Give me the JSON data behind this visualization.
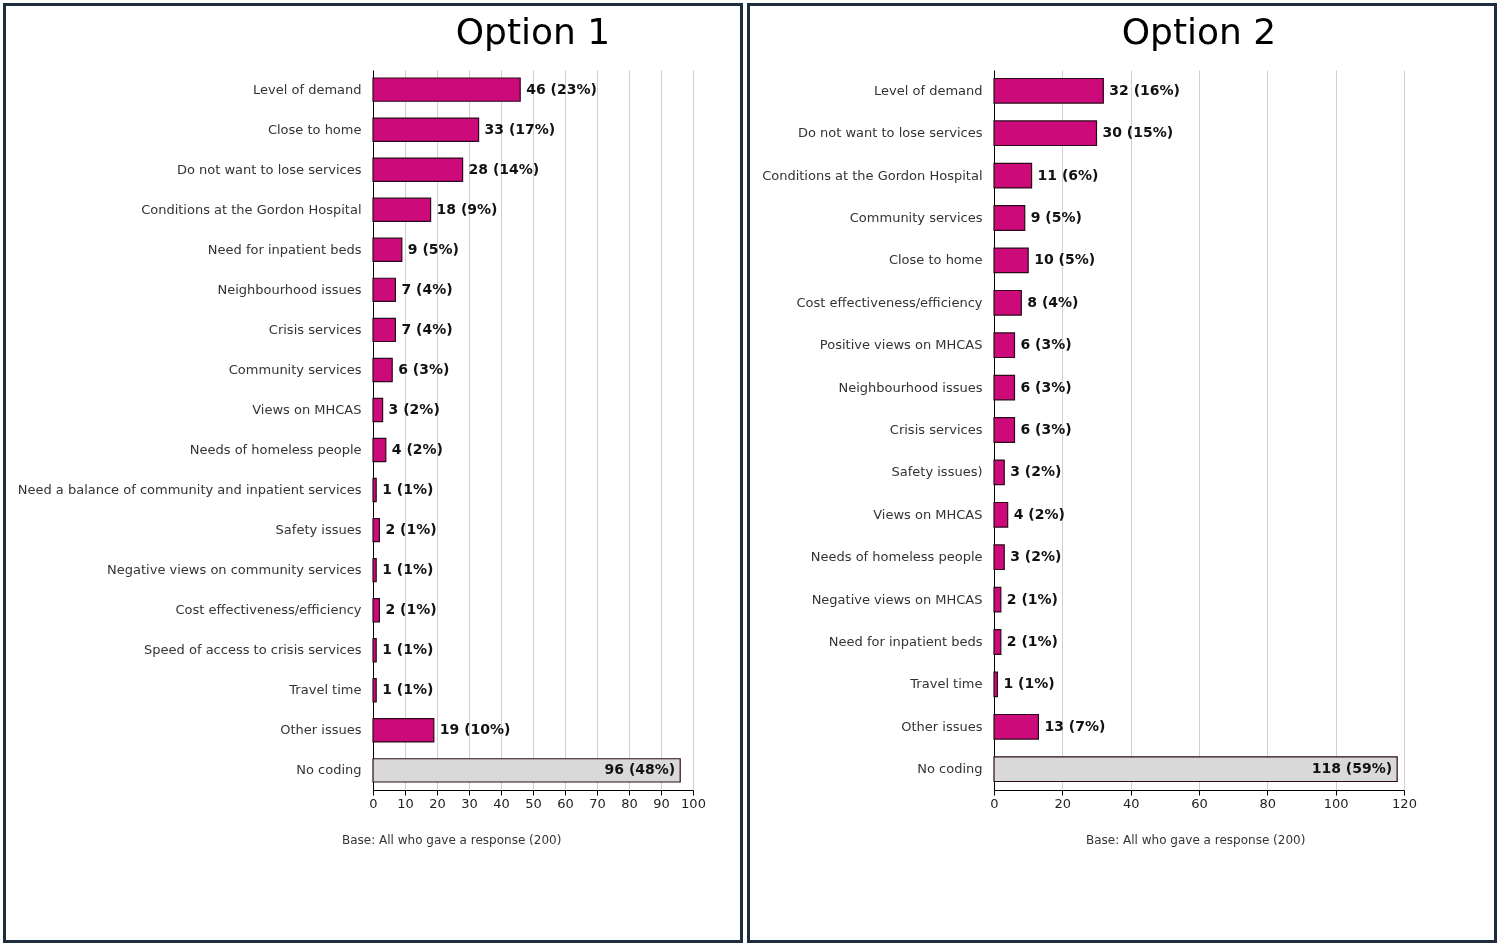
{
  "chart_data": [
    {
      "type": "bar",
      "title": "Option 1",
      "orientation": "horizontal",
      "categories": [
        "Level of demand",
        "Close to home",
        "Do not want to lose services",
        "Conditions at the Gordon Hospital",
        "Need for inpatient beds",
        "Neighbourhood issues",
        "Crisis services",
        "Community services",
        "Views on MHCAS",
        "Needs of homeless people",
        "Need a balance of community and inpatient services",
        "Safety issues",
        "Negative views on community services",
        "Cost effectiveness/efficiency",
        "Speed of access to crisis services",
        "Travel time",
        "Other issues",
        "No coding"
      ],
      "values": [
        46,
        33,
        28,
        18,
        9,
        7,
        7,
        6,
        3,
        4,
        1,
        2,
        1,
        2,
        1,
        1,
        19,
        96
      ],
      "value_labels": [
        "46 (23%)",
        "33 (17%)",
        "28 (14%)",
        "18 (9%)",
        "9 (5%)",
        "7 (4%)",
        "7 (4%)",
        "6 (3%)",
        "3 (2%)",
        "4 (2%)",
        "1 (1%)",
        "2 (1%)",
        "1 (1%)",
        "2 (1%)",
        "1 (1%)",
        "1 (1%)",
        "19 (10%)",
        "96 (48%)"
      ],
      "colors": [
        "#cc0a7a",
        "#cc0a7a",
        "#cc0a7a",
        "#cc0a7a",
        "#cc0a7a",
        "#cc0a7a",
        "#cc0a7a",
        "#cc0a7a",
        "#cc0a7a",
        "#cc0a7a",
        "#cc0a7a",
        "#cc0a7a",
        "#cc0a7a",
        "#cc0a7a",
        "#cc0a7a",
        "#cc0a7a",
        "#cc0a7a",
        "#d9d9d9"
      ],
      "xlim": [
        0,
        100
      ],
      "xticks": [
        0,
        10,
        20,
        30,
        40,
        50,
        60,
        70,
        80,
        90,
        100
      ],
      "grid": "x",
      "annotations": [
        "Base: All who gave a response (200)"
      ]
    },
    {
      "type": "bar",
      "title": "Option 2",
      "orientation": "horizontal",
      "categories": [
        "Level of demand",
        "Do not want to lose services",
        "Conditions at the Gordon Hospital",
        "Community services",
        "Close to home",
        "Cost effectiveness/efficiency",
        "Positive views on MHCAS",
        "Neighbourhood issues",
        "Crisis services",
        "Safety issues)",
        "Views on MHCAS",
        "Needs of homeless people",
        "Negative views on MHCAS",
        "Need for inpatient beds",
        "Travel time",
        "Other issues",
        "No coding"
      ],
      "values": [
        32,
        30,
        11,
        9,
        10,
        8,
        6,
        6,
        6,
        3,
        4,
        3,
        2,
        2,
        1,
        13,
        118
      ],
      "value_labels": [
        "32 (16%)",
        "30 (15%)",
        "11 (6%)",
        "9 (5%)",
        "10 (5%)",
        "8 (4%)",
        "6 (3%)",
        "6 (3%)",
        "6 (3%)",
        "3 (2%)",
        "4 (2%)",
        "3 (2%)",
        "2 (1%)",
        "2 (1%)",
        "1 (1%)",
        "13 (7%)",
        "118 (59%)"
      ],
      "colors": [
        "#cc0a7a",
        "#cc0a7a",
        "#cc0a7a",
        "#cc0a7a",
        "#cc0a7a",
        "#cc0a7a",
        "#cc0a7a",
        "#cc0a7a",
        "#cc0a7a",
        "#cc0a7a",
        "#cc0a7a",
        "#cc0a7a",
        "#cc0a7a",
        "#cc0a7a",
        "#cc0a7a",
        "#cc0a7a",
        "#d9d9d9"
      ],
      "xlim": [
        0,
        120
      ],
      "xticks": [
        0,
        20,
        40,
        60,
        80,
        100,
        120
      ],
      "grid": "x",
      "annotations": [
        "Base: All who gave a response (200)"
      ]
    }
  ]
}
